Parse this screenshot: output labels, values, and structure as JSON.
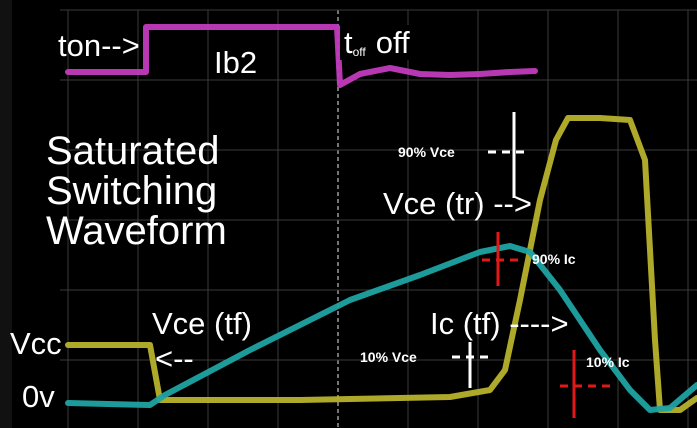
{
  "chart_data": {
    "type": "line",
    "title": "Saturated Switching Waveform",
    "title_lines": [
      "Saturated",
      "Switching",
      "Waveform"
    ],
    "xlabel": "",
    "ylabel": "",
    "grid": true,
    "series": [
      {
        "name": "Ib2",
        "color": "#c23bbd",
        "points": [
          [
            68,
            72
          ],
          [
            146,
            72
          ],
          [
            146,
            27
          ],
          [
            337,
            27
          ],
          [
            340,
            85
          ],
          [
            360,
            74
          ],
          [
            390,
            68
          ],
          [
            420,
            74
          ],
          [
            450,
            75
          ],
          [
            480,
            74
          ],
          [
            510,
            72
          ],
          [
            535,
            71
          ]
        ]
      },
      {
        "name": "Vce",
        "color": "#b8b22c",
        "points": [
          [
            68,
            345
          ],
          [
            150,
            345
          ],
          [
            160,
            400
          ],
          [
            300,
            400
          ],
          [
            450,
            397
          ],
          [
            490,
            390
          ],
          [
            505,
            370
          ],
          [
            520,
            300
          ],
          [
            540,
            200
          ],
          [
            556,
            140
          ],
          [
            568,
            118
          ],
          [
            600,
            118
          ],
          [
            630,
            120
          ],
          [
            645,
            160
          ],
          [
            655,
            340
          ],
          [
            660,
            410
          ],
          [
            680,
            410
          ],
          [
            697,
            398
          ]
        ]
      },
      {
        "name": "Ic",
        "color": "#1fa3a3",
        "points": [
          [
            68,
            403
          ],
          [
            150,
            405
          ],
          [
            165,
            395
          ],
          [
            250,
            350
          ],
          [
            350,
            300
          ],
          [
            420,
            275
          ],
          [
            480,
            252
          ],
          [
            510,
            246
          ],
          [
            530,
            252
          ],
          [
            560,
            290
          ],
          [
            600,
            350
          ],
          [
            630,
            390
          ],
          [
            650,
            410
          ],
          [
            670,
            408
          ],
          [
            697,
            385
          ]
        ]
      }
    ],
    "annotations": {
      "ton": "ton-->",
      "ib2": "Ib2",
      "toff_t": "t",
      "toff_sub": "off",
      "toff_tail": "off",
      "vcc": "Vcc",
      "zero_v": "0v",
      "vce_tf": "Vce (tf)",
      "vce_tf_arrow": "<--",
      "ic_tf": "Ic (tf) ---->",
      "vce_tr": "Vce (tr) -->",
      "pct90_vce": "90% Vce",
      "pct90_ic": "90% Ic",
      "pct10_vce": "10% Vce",
      "pct10_ic": "10% Ic"
    }
  },
  "colors": {
    "background": "#000000",
    "grid": "#3a3a3a",
    "ib2": "#c23bbd",
    "vce": "#b8b22c",
    "ic": "#1fa3a3",
    "marker_white": "#ffffff",
    "marker_red": "#e01818"
  }
}
